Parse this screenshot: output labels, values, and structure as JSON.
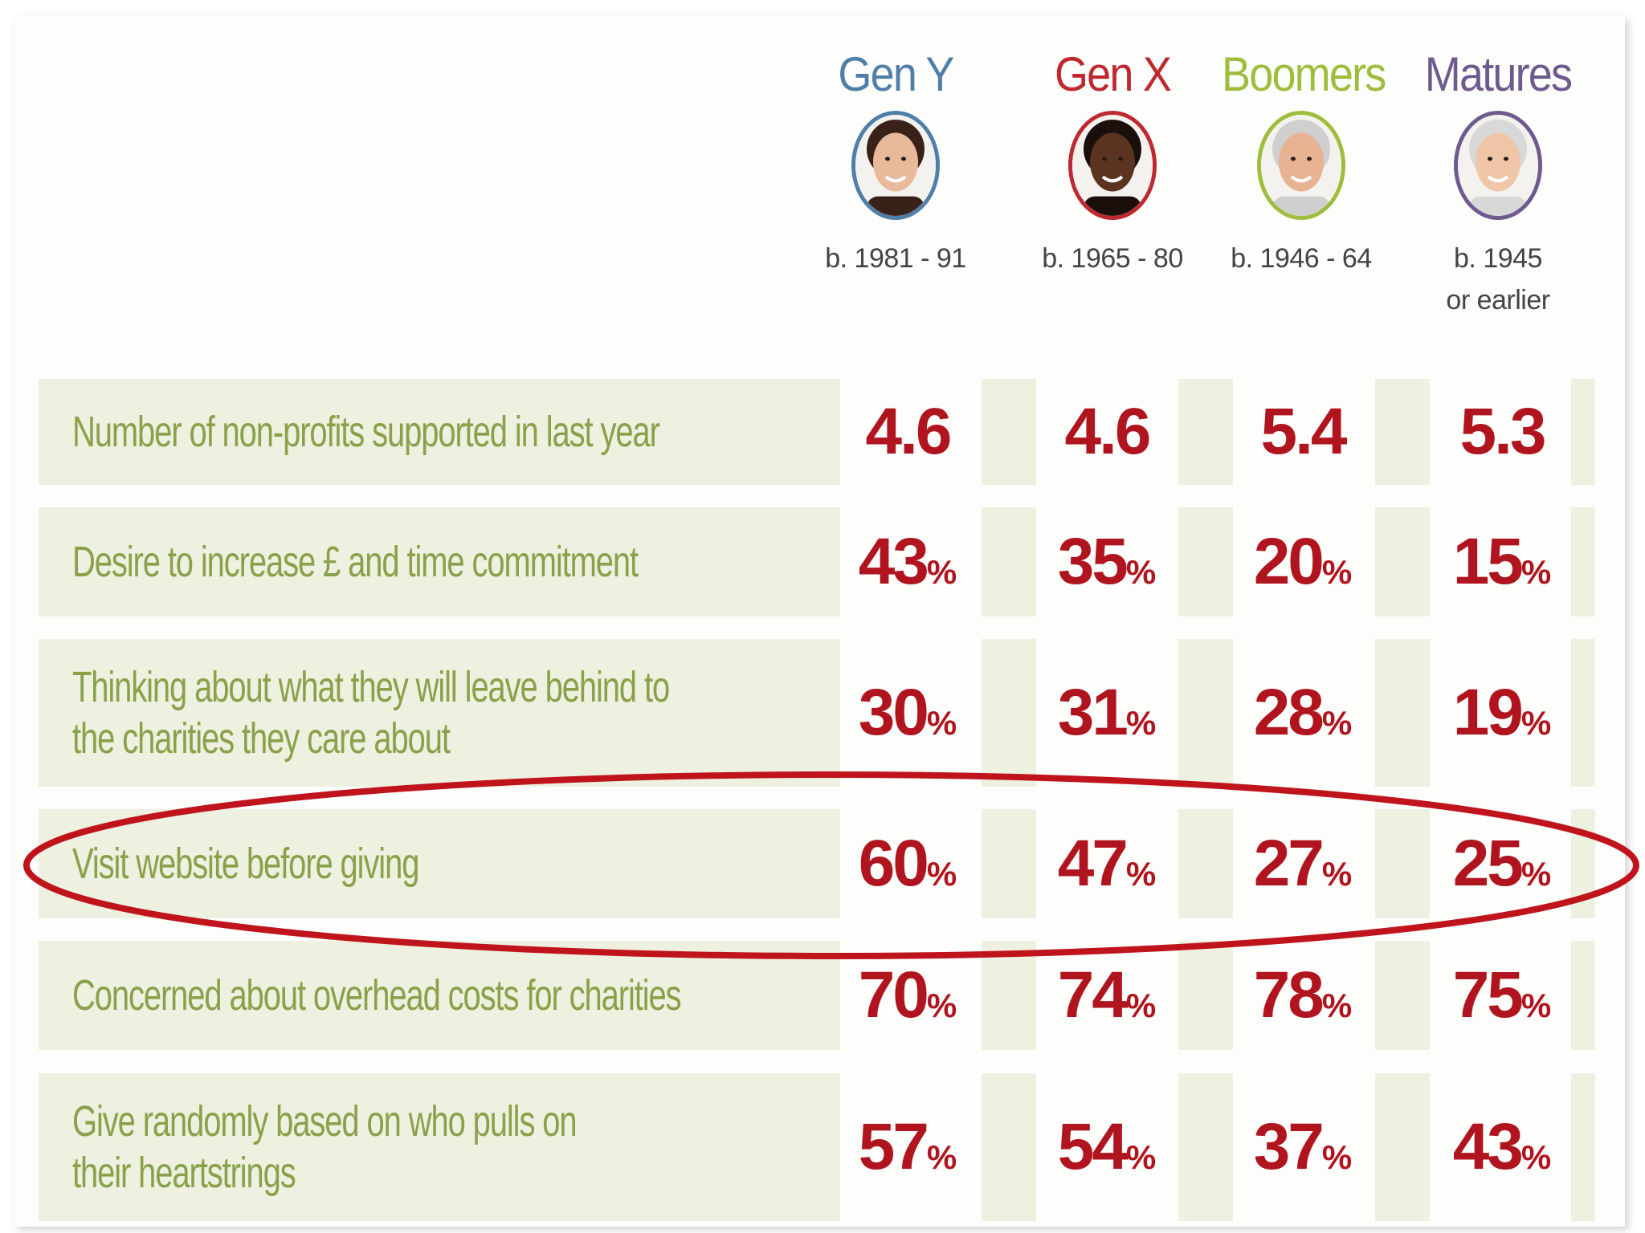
{
  "chart_data": {
    "type": "table",
    "title": "",
    "columns": [
      {
        "name": "Gen Y",
        "born": "b. 1981 - 91",
        "color": "#4f7fa8"
      },
      {
        "name": "Gen X",
        "born": "b. 1965 - 80",
        "color": "#c0282f"
      },
      {
        "name": "Boomers",
        "born": "b. 1946 - 64",
        "color": "#9ebd3d"
      },
      {
        "name": "Matures",
        "born": "b. 1945\nor earlier",
        "color": "#6e5a8f"
      }
    ],
    "rows": [
      {
        "label": "Number of non-profits supported in last year",
        "values": [
          "4.6",
          "4.6",
          "5.4",
          "5.3"
        ],
        "unit": ""
      },
      {
        "label": "Desire to increase £ and time commitment",
        "values": [
          "43",
          "35",
          "20",
          "15"
        ],
        "unit": "%"
      },
      {
        "label": "Thinking about what they will leave behind to\nthe charities they care about",
        "values": [
          "30",
          "31",
          "28",
          "19"
        ],
        "unit": "%"
      },
      {
        "label": "Visit website before giving",
        "values": [
          "60",
          "47",
          "27",
          "25"
        ],
        "unit": "%",
        "highlighted": true
      },
      {
        "label": "Concerned about overhead costs for charities",
        "values": [
          "70",
          "74",
          "78",
          "75"
        ],
        "unit": "%"
      },
      {
        "label": "Give randomly based on who pulls on\ntheir heartstrings",
        "values": [
          "57",
          "54",
          "37",
          "43"
        ],
        "unit": "%"
      }
    ],
    "colors": {
      "label": "#8aa14a",
      "value": "#b0151f",
      "row_bg": "#eef0e0",
      "highlight": "#c0141c"
    }
  }
}
